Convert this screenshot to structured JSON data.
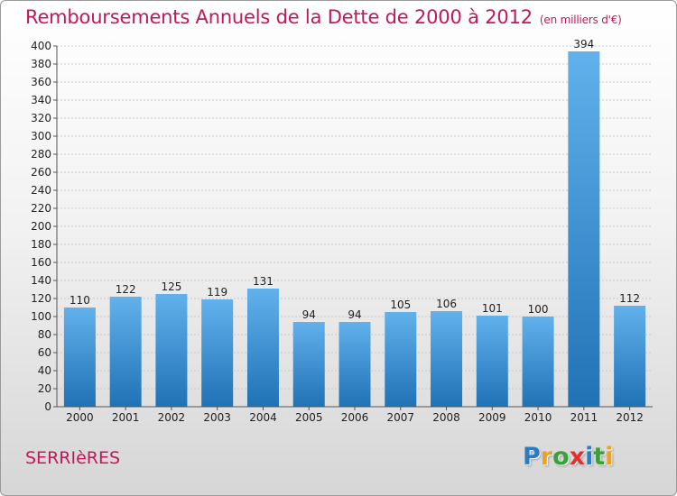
{
  "chart_data": {
    "type": "bar",
    "title": "Remboursements Annuels de la Dette de 2000 à 2012",
    "subtitle": "(en milliers d'€)",
    "categories": [
      "2000",
      "2001",
      "2002",
      "2003",
      "2004",
      "2005",
      "2006",
      "2007",
      "2008",
      "2009",
      "2010",
      "2011",
      "2012"
    ],
    "values": [
      110,
      122,
      125,
      119,
      131,
      94,
      94,
      105,
      106,
      101,
      100,
      394,
      112
    ],
    "ylim": [
      0,
      400
    ],
    "yticks": [
      0,
      20,
      40,
      60,
      80,
      100,
      120,
      140,
      160,
      180,
      200,
      220,
      240,
      260,
      280,
      300,
      320,
      340,
      360,
      380,
      400
    ],
    "grid": true,
    "xlabel": "",
    "ylabel": ""
  },
  "place_name": "SERRIèRES",
  "logo": {
    "letters": [
      "P",
      "r",
      "o",
      "x",
      "i",
      "t",
      "i"
    ],
    "colors": [
      "#2e7bbf",
      "#f0a020",
      "#3aa03a",
      "#e03030",
      "#2e7bbf",
      "#3aa03a",
      "#f0a020"
    ]
  },
  "colors": {
    "title": "#c2185b",
    "bar_light": "#62b1ec",
    "bar_dark": "#1f72b5",
    "grid": "#c8c8c8"
  }
}
